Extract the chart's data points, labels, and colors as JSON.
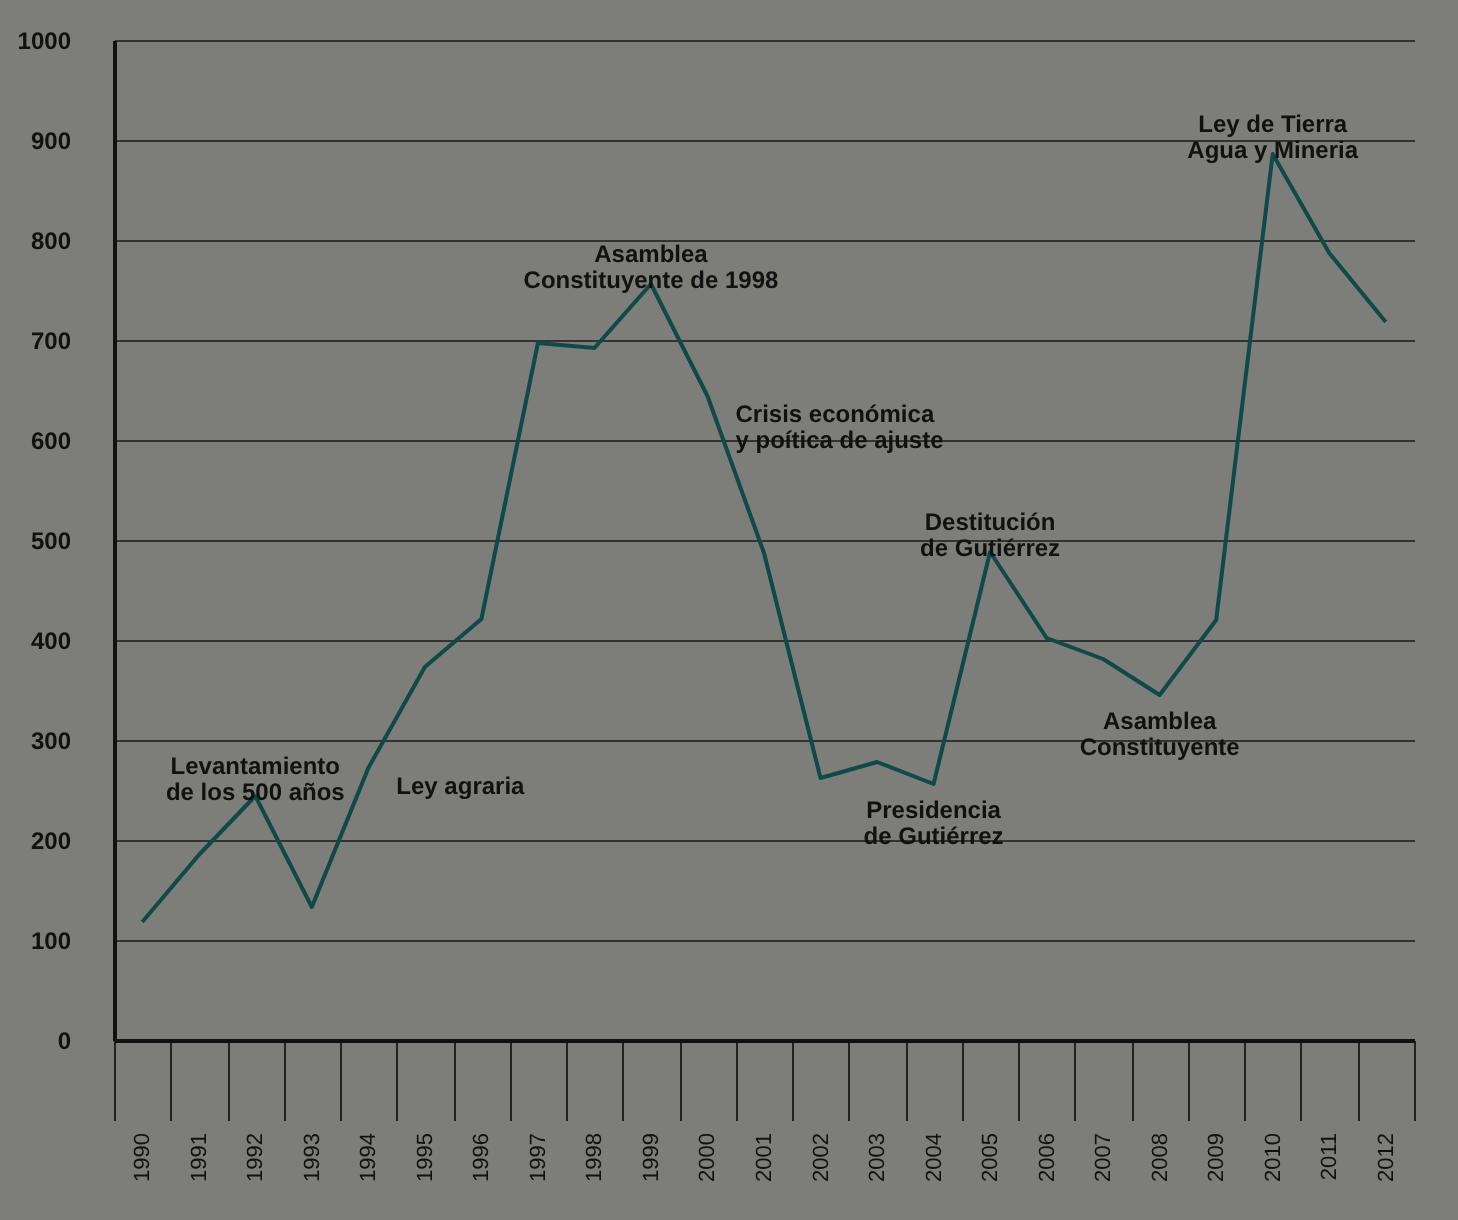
{
  "chart_data": {
    "type": "line",
    "categories": [
      "1990",
      "1991",
      "1992",
      "1993",
      "1994",
      "1995",
      "1996",
      "1997",
      "1998",
      "1999",
      "2000",
      "2001",
      "2002",
      "2003",
      "2004",
      "2005",
      "2006",
      "2007",
      "2008",
      "2009",
      "2010",
      "2011",
      "2012"
    ],
    "series": [
      {
        "color": "#0f4a48",
        "values": [
          118,
          185,
          244,
          133,
          272,
          373,
          421,
          697,
          692,
          756,
          644,
          487,
          262,
          278,
          256,
          488,
          402,
          381,
          345,
          420,
          886,
          787,
          718
        ]
      }
    ],
    "ylim": [
      0,
      1000
    ],
    "yticks": [
      0,
      100,
      200,
      300,
      400,
      500,
      600,
      700,
      800,
      900,
      1000
    ],
    "grid": "y",
    "line_style": "solid",
    "marker": "none",
    "annotations": [
      {
        "text": "Levantamiento\nde los 500 años",
        "x": "1992",
        "y": 244
      },
      {
        "text": "Ley agraria",
        "x": "1994",
        "y": 272
      },
      {
        "text": "Asamblea\nConstituyente de 1998",
        "x": "1999",
        "y": 756
      },
      {
        "text": "Crisis económica\ny poítica de ajuste",
        "x": "2000",
        "y": 644
      },
      {
        "text": "Destitución\nde Gutiérrez",
        "x": "2005",
        "y": 488
      },
      {
        "text": "Presidencia\nde Gutiérrez",
        "x": "2004",
        "y": 256
      },
      {
        "text": "Asamblea\nConstituyente",
        "x": "2008",
        "y": 345
      },
      {
        "text": "Ley de Tierra\nAgua y Mineria",
        "x": "2010",
        "y": 886
      }
    ]
  }
}
